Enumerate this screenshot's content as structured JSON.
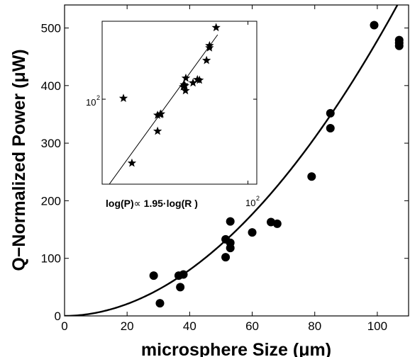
{
  "chart_data": [
    {
      "type": "scatter",
      "xlabel": "microsphere Size (μm)",
      "ylabel": "Q−Normalized Power (μW)",
      "xlim": [
        0,
        110
      ],
      "ylim": [
        0,
        540
      ],
      "x_ticks": [
        0,
        20,
        40,
        60,
        80,
        100
      ],
      "y_ticks": [
        0,
        100,
        200,
        300,
        400,
        500
      ],
      "grid": false,
      "series": [
        {
          "marker": "filled-circle",
          "color": "#000000",
          "points": [
            [
              28.5,
              70
            ],
            [
              30.5,
              22
            ],
            [
              36.5,
              70
            ],
            [
              37,
              50
            ],
            [
              38,
              72
            ],
            [
              51.5,
              133
            ],
            [
              51.5,
              102
            ],
            [
              53,
              118
            ],
            [
              53,
              127
            ],
            [
              53,
              164
            ],
            [
              60,
              145
            ],
            [
              66,
              163
            ],
            [
              68,
              160
            ],
            [
              79,
              242
            ],
            [
              85,
              352
            ],
            [
              85,
              326
            ],
            [
              99,
              505
            ],
            [
              107,
              479
            ],
            [
              107,
              474
            ],
            [
              107,
              469
            ]
          ]
        },
        {
          "marker": "line",
          "color": "#000000",
          "fit_exponent": 1.95,
          "fit_coefficient": 0.0602,
          "fit_x_range": [
            0,
            110
          ]
        }
      ]
    },
    {
      "type": "scatter",
      "scale": "log-log",
      "annotation_prefix": "log(P)",
      "annotation_suffix": "1.95·log(R )",
      "xlim": [
        10,
        115
      ],
      "ylim": [
        15,
        570
      ],
      "y_tick_base": "10",
      "y_tick_exp": "2",
      "x_tick_base": "10",
      "x_tick_exp": "2",
      "series": [
        {
          "marker": "star",
          "color": "#000000",
          "points": [
            [
              14,
              102
            ],
            [
              16,
              24
            ],
            [
              24,
              70
            ],
            [
              24,
              49
            ],
            [
              25,
              71
            ],
            [
              25.3,
              72
            ],
            [
              36,
              132
            ],
            [
              36.5,
              138
            ],
            [
              37,
              135
            ],
            [
              37.3,
              121
            ],
            [
              37.5,
              160
            ],
            [
              42,
              144
            ],
            [
              45,
              155
            ],
            [
              46.5,
              153
            ],
            [
              52,
              238
            ],
            [
              54.5,
              315
            ],
            [
              54.5,
              331
            ],
            [
              60.5,
              495
            ]
          ]
        },
        {
          "marker": "line",
          "color": "#000000",
          "fit_exponent": 1.95,
          "fit_coefficient": 0.135,
          "fit_x_range": [
            10,
            62
          ]
        }
      ]
    }
  ]
}
